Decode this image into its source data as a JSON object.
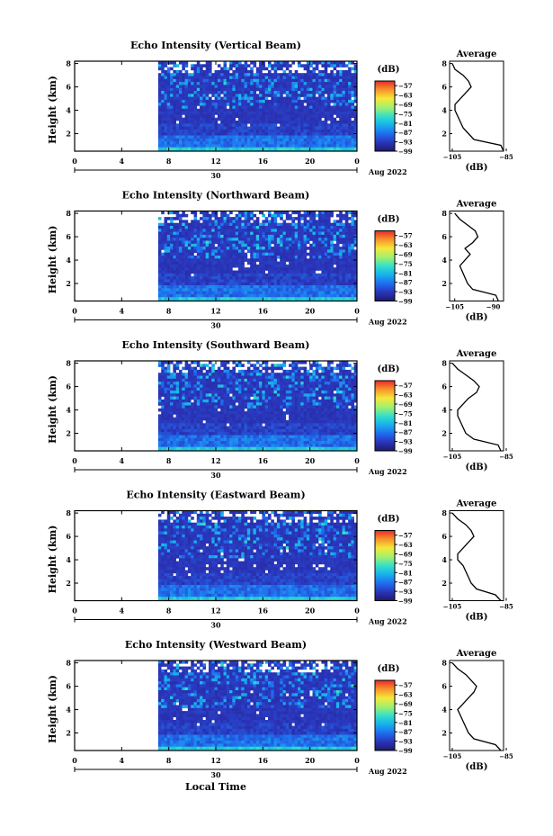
{
  "figure": {
    "xlabel": "Local Time",
    "colorbar_unit": "(dB)",
    "date_label": "Aug 2022",
    "date_tick_label": "30",
    "profile_title": "Average",
    "profile_xlabel": "(dB)",
    "ylabel": "Height (km)"
  },
  "chart_data": [
    {
      "type": "heatmap",
      "title": "Echo Intensity (Vertical Beam)",
      "ylabel": "Height (km)",
      "x_ticks": [
        "0",
        "4",
        "8",
        "12",
        "16",
        "20",
        "0"
      ],
      "y_ticks": [
        "2",
        "4",
        "6",
        "8"
      ],
      "xlim_hours": [
        0,
        24
      ],
      "data_start_hour": 7.1,
      "ylim_km": [
        0.5,
        8.2
      ],
      "colorbar": {
        "unit": "(dB)",
        "ticks": [
          "-57",
          "-63",
          "-69",
          "-75",
          "-81",
          "-87",
          "-93",
          "-99"
        ],
        "range": [
          -99,
          -54
        ]
      },
      "profile": {
        "title": "Average",
        "xlabel": "(dB)",
        "xlim": [
          -106,
          -86
        ],
        "x_ticks": [
          "-105",
          "-85"
        ],
        "heights_km": [
          0.5,
          1.0,
          1.5,
          2.0,
          2.5,
          3.0,
          3.5,
          4.0,
          4.5,
          5.0,
          5.5,
          6.0,
          6.5,
          7.0,
          7.5,
          8.0
        ],
        "values_db": [
          -86,
          -87,
          -97,
          -99,
          -101,
          -102,
          -103,
          -104,
          -104,
          -102,
          -100,
          -98,
          -99,
          -101,
          -104,
          -105
        ]
      }
    },
    {
      "type": "heatmap",
      "title": "Echo Intensity (Northward Beam)",
      "ylabel": "Height (km)",
      "x_ticks": [
        "0",
        "4",
        "8",
        "12",
        "16",
        "20",
        "0"
      ],
      "y_ticks": [
        "2",
        "4",
        "6",
        "8"
      ],
      "xlim_hours": [
        0,
        24
      ],
      "data_start_hour": 7.1,
      "ylim_km": [
        0.5,
        8.2
      ],
      "colorbar": {
        "unit": "(dB)",
        "ticks": [
          "-57",
          "-63",
          "-69",
          "-75",
          "-81",
          "-87",
          "-93",
          "-99"
        ],
        "range": [
          -99,
          -54
        ]
      },
      "profile": {
        "title": "Average",
        "xlabel": "(dB)",
        "xlim": [
          -107,
          -86
        ],
        "x_ticks": [
          "-105",
          "-90"
        ],
        "heights_km": [
          0.5,
          1.0,
          1.5,
          2.0,
          2.5,
          3.0,
          3.5,
          4.0,
          4.5,
          5.0,
          5.5,
          6.0,
          6.5,
          7.0,
          7.5,
          8.0
        ],
        "values_db": [
          -88,
          -89,
          -98,
          -100,
          -101,
          -102,
          -103,
          -101,
          -99,
          -101,
          -98,
          -96,
          -97,
          -100,
          -103,
          -105
        ]
      }
    },
    {
      "type": "heatmap",
      "title": "Echo Intensity (Southward Beam)",
      "ylabel": "Height (km)",
      "x_ticks": [
        "0",
        "4",
        "8",
        "12",
        "16",
        "20",
        "0"
      ],
      "y_ticks": [
        "2",
        "4",
        "6",
        "8"
      ],
      "xlim_hours": [
        0,
        24
      ],
      "data_start_hour": 7.1,
      "ylim_km": [
        0.5,
        8.2
      ],
      "colorbar": {
        "unit": "(dB)",
        "ticks": [
          "-57",
          "-63",
          "-69",
          "-75",
          "-81",
          "-87",
          "-93",
          "-99"
        ],
        "range": [
          -99,
          -54
        ]
      },
      "profile": {
        "title": "Average",
        "xlabel": "(dB)",
        "xlim": [
          -106,
          -86
        ],
        "x_ticks": [
          "-105",
          "-85"
        ],
        "heights_km": [
          0.5,
          1.0,
          1.5,
          2.0,
          2.5,
          3.0,
          3.5,
          4.0,
          4.5,
          5.0,
          5.5,
          6.0,
          6.5,
          7.0,
          7.5,
          8.0
        ],
        "values_db": [
          -87,
          -88,
          -97,
          -100,
          -101,
          -102,
          -103,
          -103,
          -101,
          -99,
          -96,
          -95,
          -97,
          -100,
          -103,
          -105
        ]
      }
    },
    {
      "type": "heatmap",
      "title": "Echo Intensity (Eastward Beam)",
      "ylabel": "Height (km)",
      "x_ticks": [
        "0",
        "4",
        "8",
        "12",
        "16",
        "20",
        "0"
      ],
      "y_ticks": [
        "2",
        "4",
        "6",
        "8"
      ],
      "xlim_hours": [
        0,
        24
      ],
      "data_start_hour": 7.1,
      "ylim_km": [
        0.5,
        8.2
      ],
      "colorbar": {
        "unit": "(dB)",
        "ticks": [
          "-57",
          "-63",
          "-69",
          "-75",
          "-81",
          "-87",
          "-93",
          "-99"
        ],
        "range": [
          -99,
          -54
        ]
      },
      "profile": {
        "title": "Average",
        "xlabel": "(dB)",
        "xlim": [
          -106,
          -86
        ],
        "x_ticks": [
          "-105",
          "-85"
        ],
        "heights_km": [
          0.5,
          1.0,
          1.5,
          2.0,
          2.5,
          3.0,
          3.5,
          4.0,
          4.5,
          5.0,
          5.5,
          6.0,
          6.5,
          7.0,
          7.5,
          8.0
        ],
        "values_db": [
          -87,
          -89,
          -96,
          -98,
          -99,
          -100,
          -101,
          -103,
          -103,
          -101,
          -99,
          -97,
          -98,
          -100,
          -103,
          -105
        ]
      }
    },
    {
      "type": "heatmap",
      "title": "Echo Intensity (Westward Beam)",
      "ylabel": "Height (km)",
      "x_ticks": [
        "0",
        "4",
        "8",
        "12",
        "16",
        "20",
        "0"
      ],
      "y_ticks": [
        "2",
        "4",
        "6",
        "8"
      ],
      "xlim_hours": [
        0,
        24
      ],
      "data_start_hour": 7.1,
      "ylim_km": [
        0.5,
        8.2
      ],
      "colorbar": {
        "unit": "(dB)",
        "ticks": [
          "-57",
          "-63",
          "-69",
          "-75",
          "-81",
          "-87",
          "-93",
          "-99"
        ],
        "range": [
          -99,
          -54
        ]
      },
      "profile": {
        "title": "Average",
        "xlabel": "(dB)",
        "xlim": [
          -106,
          -86
        ],
        "x_ticks": [
          "-105",
          "-85"
        ],
        "heights_km": [
          0.5,
          1.0,
          1.5,
          2.0,
          2.5,
          3.0,
          3.5,
          4.0,
          4.5,
          5.0,
          5.5,
          6.0,
          6.5,
          7.0,
          7.5,
          8.0
        ],
        "values_db": [
          -87,
          -89,
          -97,
          -99,
          -100,
          -101,
          -102,
          -103,
          -101,
          -99,
          -97,
          -96,
          -98,
          -100,
          -103,
          -105
        ]
      }
    }
  ]
}
